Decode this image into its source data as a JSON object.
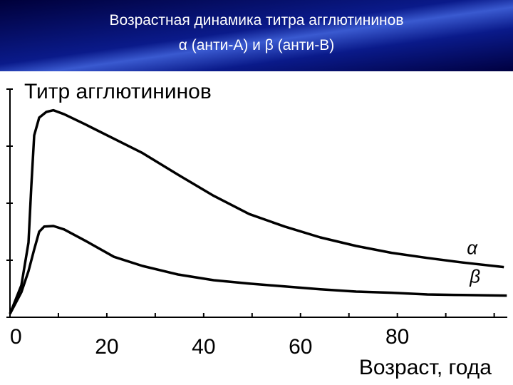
{
  "chart_data": {
    "type": "line",
    "title": "Возрастная динамика титра агглютининов",
    "subtitle": "α (анти-А) и β (анти-В)",
    "y_label": "Титр агглютининов",
    "x_label": "Возраст, года",
    "xlim": [
      0,
      103
    ],
    "ylim": [
      0,
      4
    ],
    "xticks": [
      0,
      20,
      40,
      60,
      80
    ],
    "xminor_ticks": [
      10,
      30,
      50,
      70,
      90,
      100
    ],
    "yticks": [
      0,
      1,
      2,
      3,
      4
    ],
    "series": [
      {
        "name": "α",
        "color": "#000000",
        "x": [
          0,
          2.35,
          3.82,
          4.41,
          5.0,
          6.03,
          7.5,
          8.97,
          11.18,
          15.59,
          21.47,
          27.35,
          34.7,
          42.06,
          49.4,
          56.76,
          64.1,
          71.5,
          78.8,
          86.2,
          93.5,
          102
        ],
        "values": [
          0.06,
          0.56,
          1.31,
          2.31,
          3.19,
          3.5,
          3.6,
          3.63,
          3.56,
          3.38,
          3.13,
          2.88,
          2.5,
          2.13,
          1.81,
          1.59,
          1.4,
          1.25,
          1.13,
          1.04,
          0.96,
          0.88
        ]
      },
      {
        "name": "β",
        "color": "#000000",
        "x": [
          0,
          2.35,
          3.82,
          5.0,
          6.03,
          7.06,
          8.97,
          11.18,
          15.59,
          21.47,
          27.35,
          34.7,
          42.06,
          49.4,
          56.76,
          64.1,
          71.5,
          78.8,
          86.2,
          93.5,
          102.6
        ],
        "values": [
          0.06,
          0.44,
          0.81,
          1.19,
          1.5,
          1.59,
          1.6,
          1.54,
          1.34,
          1.06,
          0.9,
          0.75,
          0.65,
          0.59,
          0.54,
          0.49,
          0.45,
          0.43,
          0.4,
          0.39,
          0.38
        ]
      }
    ]
  }
}
